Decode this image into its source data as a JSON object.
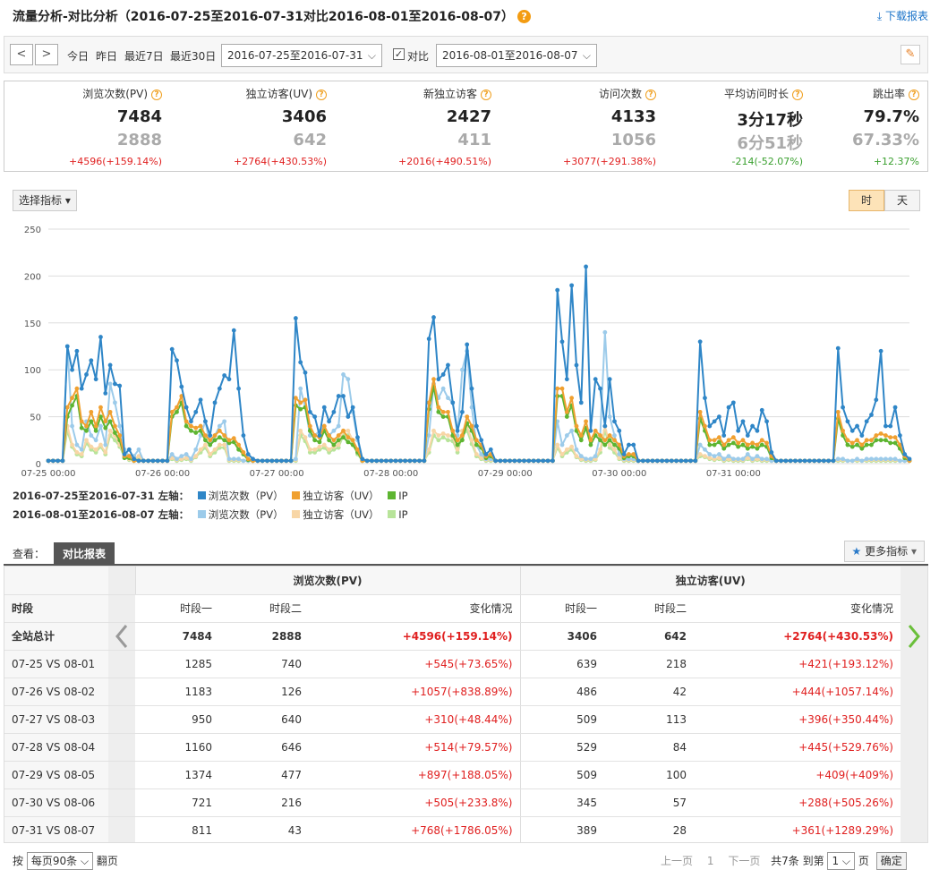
{
  "header": {
    "title": "流量分析-对比分析（2016-07-25至2016-07-31对比2016-08-01至2016-08-07）",
    "help_icon": "?",
    "download_label": "下载报表"
  },
  "toolbar": {
    "prev": "<",
    "next": ">",
    "quick": [
      "今日",
      "昨日",
      "最近7日",
      "最近30日"
    ],
    "range1": "2016-07-25至2016-07-31",
    "compare_checked": "✓",
    "compare_label": "对比",
    "range2": "2016-08-01至2016-08-07"
  },
  "metrics": [
    {
      "label": "浏览次数(PV)",
      "v1": "7484",
      "v2": "2888",
      "change": "+4596(+159.14%)",
      "dir": "up"
    },
    {
      "label": "独立访客(UV)",
      "v1": "3406",
      "v2": "642",
      "change": "+2764(+430.53%)",
      "dir": "up"
    },
    {
      "label": "新独立访客",
      "v1": "2427",
      "v2": "411",
      "change": "+2016(+490.51%)",
      "dir": "up"
    },
    {
      "label": "访问次数",
      "v1": "4133",
      "v2": "1056",
      "change": "+3077(+291.38%)",
      "dir": "up"
    },
    {
      "label": "平均访问时长",
      "v1": "3分17秒",
      "v2": "6分51秒",
      "change": "-214(-52.07%)",
      "dir": "dn"
    },
    {
      "label": "跳出率",
      "v1": "79.7%",
      "v2": "67.33%",
      "change": "+12.37%",
      "dir": "dn"
    }
  ],
  "chart_controls": {
    "select_metric": "选择指标 ▾",
    "hour": "时",
    "day": "天"
  },
  "chart_data": {
    "type": "line",
    "y_ticks": [
      "250",
      "200",
      "150",
      "100",
      "50",
      "0"
    ],
    "ylim": [
      0,
      250
    ],
    "x_ticks": [
      "07-25 00:00",
      "07-26 00:00",
      "07-27 00:00",
      "07-28 00:00",
      "07-29 00:00",
      "07-30 00:00",
      "07-31 00:00"
    ],
    "colors": {
      "pv1": "#2f86c7",
      "uv1": "#f0a030",
      "ip1": "#5db531",
      "pv2": "#9ccbea",
      "uv2": "#f8d6a6",
      "ip2": "#b8e49a"
    },
    "series": [
      {
        "key": "pv1",
        "values": [
          3,
          3,
          3,
          3,
          125,
          100,
          120,
          80,
          95,
          110,
          90,
          135,
          75,
          105,
          85,
          83,
          10,
          15,
          5,
          3,
          3,
          3,
          3,
          3,
          3,
          3,
          122,
          110,
          82,
          60,
          45,
          55,
          68,
          45,
          30,
          65,
          80,
          94,
          90,
          142,
          80,
          30,
          10,
          5,
          3,
          3,
          3,
          3,
          3,
          3,
          3,
          3,
          155,
          108,
          97,
          55,
          50,
          30,
          60,
          45,
          55,
          72,
          72,
          50,
          60,
          28,
          5,
          3,
          3,
          3,
          3,
          3,
          3,
          3,
          3,
          3,
          3,
          3,
          3,
          3,
          133,
          156,
          90,
          95,
          105,
          65,
          35,
          55,
          127,
          80,
          40,
          25,
          10,
          15,
          3,
          3,
          3,
          3,
          3,
          3,
          3,
          3,
          3,
          3,
          3,
          3,
          3,
          185,
          130,
          90,
          190,
          105,
          65,
          210,
          35,
          90,
          80,
          40,
          90,
          45,
          35,
          10,
          20,
          20,
          3,
          3,
          3,
          3,
          3,
          3,
          3,
          3,
          3,
          3,
          3,
          3,
          3,
          130,
          70,
          40,
          45,
          50,
          30,
          60,
          65,
          35,
          45,
          30,
          40,
          35,
          57,
          45,
          12,
          3,
          3,
          3,
          3,
          3,
          3,
          3,
          3,
          3,
          3,
          3,
          3,
          3,
          123,
          60,
          45,
          35,
          40,
          30,
          45,
          52,
          68,
          120,
          40,
          40,
          60,
          30,
          10,
          5
        ]
      },
      {
        "key": "uv1",
        "values": [
          3,
          3,
          3,
          3,
          60,
          70,
          80,
          45,
          40,
          55,
          40,
          60,
          45,
          55,
          40,
          30,
          8,
          8,
          3,
          3,
          3,
          3,
          3,
          3,
          3,
          3,
          55,
          60,
          72,
          45,
          40,
          38,
          40,
          30,
          25,
          30,
          35,
          30,
          25,
          27,
          20,
          12,
          5,
          3,
          3,
          3,
          3,
          3,
          3,
          3,
          3,
          3,
          70,
          65,
          68,
          40,
          30,
          28,
          40,
          30,
          25,
          30,
          35,
          28,
          25,
          15,
          3,
          3,
          3,
          3,
          3,
          3,
          3,
          3,
          3,
          3,
          3,
          3,
          3,
          3,
          65,
          90,
          60,
          55,
          55,
          35,
          25,
          30,
          50,
          40,
          25,
          20,
          8,
          10,
          3,
          3,
          3,
          3,
          3,
          3,
          3,
          3,
          3,
          3,
          3,
          3,
          3,
          80,
          80,
          55,
          70,
          40,
          30,
          45,
          25,
          35,
          30,
          25,
          30,
          25,
          20,
          8,
          10,
          10,
          3,
          3,
          3,
          3,
          3,
          3,
          3,
          3,
          3,
          3,
          3,
          3,
          3,
          55,
          40,
          25,
          25,
          28,
          20,
          25,
          28,
          22,
          25,
          20,
          22,
          20,
          25,
          22,
          8,
          3,
          3,
          3,
          3,
          3,
          3,
          3,
          3,
          3,
          3,
          3,
          3,
          3,
          55,
          35,
          25,
          22,
          25,
          20,
          25,
          25,
          30,
          32,
          30,
          28,
          28,
          20,
          8,
          3
        ]
      },
      {
        "key": "ip1",
        "values": [
          3,
          3,
          3,
          3,
          50,
          62,
          72,
          38,
          35,
          45,
          35,
          50,
          38,
          45,
          33,
          25,
          6,
          6,
          3,
          3,
          3,
          3,
          3,
          3,
          3,
          3,
          50,
          55,
          65,
          40,
          35,
          33,
          35,
          25,
          20,
          25,
          28,
          25,
          22,
          23,
          15,
          10,
          4,
          3,
          3,
          3,
          3,
          3,
          3,
          3,
          3,
          3,
          62,
          58,
          60,
          35,
          25,
          23,
          35,
          25,
          20,
          25,
          28,
          23,
          20,
          12,
          3,
          3,
          3,
          3,
          3,
          3,
          3,
          3,
          3,
          3,
          3,
          3,
          3,
          3,
          58,
          82,
          55,
          50,
          50,
          30,
          20,
          25,
          43,
          35,
          20,
          17,
          6,
          8,
          3,
          3,
          3,
          3,
          3,
          3,
          3,
          3,
          3,
          3,
          3,
          3,
          3,
          72,
          72,
          50,
          62,
          35,
          25,
          38,
          20,
          30,
          25,
          20,
          25,
          20,
          16,
          6,
          8,
          8,
          3,
          3,
          3,
          3,
          3,
          3,
          3,
          3,
          3,
          3,
          3,
          3,
          3,
          48,
          35,
          20,
          20,
          23,
          16,
          20,
          22,
          18,
          20,
          16,
          18,
          16,
          20,
          18,
          6,
          3,
          3,
          3,
          3,
          3,
          3,
          3,
          3,
          3,
          3,
          3,
          3,
          3,
          48,
          30,
          20,
          18,
          20,
          16,
          20,
          20,
          25,
          25,
          25,
          22,
          22,
          16,
          6,
          3
        ]
      },
      {
        "key": "pv2",
        "values": [
          3,
          3,
          3,
          3,
          125,
          40,
          20,
          15,
          45,
          30,
          25,
          40,
          20,
          85,
          65,
          40,
          15,
          8,
          8,
          15,
          3,
          3,
          3,
          3,
          3,
          3,
          10,
          5,
          8,
          10,
          5,
          15,
          30,
          45,
          20,
          30,
          40,
          45,
          5,
          5,
          5,
          3,
          3,
          3,
          3,
          3,
          3,
          3,
          3,
          3,
          3,
          3,
          5,
          80,
          60,
          30,
          30,
          35,
          40,
          30,
          35,
          40,
          95,
          90,
          55,
          25,
          5,
          3,
          3,
          3,
          3,
          3,
          3,
          3,
          3,
          3,
          3,
          3,
          3,
          3,
          30,
          85,
          70,
          80,
          70,
          65,
          30,
          100,
          120,
          60,
          20,
          10,
          5,
          5,
          3,
          3,
          3,
          3,
          3,
          3,
          3,
          3,
          3,
          3,
          3,
          3,
          3,
          45,
          20,
          30,
          35,
          15,
          8,
          5,
          5,
          8,
          30,
          140,
          50,
          30,
          10,
          5,
          5,
          5,
          3,
          3,
          3,
          3,
          3,
          3,
          3,
          3,
          3,
          3,
          3,
          3,
          3,
          20,
          15,
          10,
          8,
          10,
          5,
          8,
          5,
          5,
          5,
          10,
          5,
          8,
          5,
          5,
          3,
          3,
          3,
          3,
          3,
          3,
          3,
          3,
          3,
          3,
          3,
          3,
          3,
          3,
          5,
          5,
          3,
          3,
          5,
          3,
          5,
          5,
          5,
          5,
          5,
          5,
          5,
          3,
          3,
          3
        ]
      },
      {
        "key": "uv2",
        "values": [
          3,
          3,
          3,
          3,
          40,
          20,
          12,
          10,
          25,
          18,
          15,
          20,
          12,
          35,
          30,
          20,
          8,
          5,
          5,
          8,
          3,
          3,
          3,
          3,
          3,
          3,
          6,
          4,
          5,
          6,
          4,
          8,
          15,
          20,
          10,
          15,
          20,
          20,
          4,
          4,
          4,
          3,
          3,
          3,
          3,
          3,
          3,
          3,
          3,
          3,
          3,
          3,
          4,
          35,
          28,
          15,
          15,
          18,
          20,
          15,
          18,
          20,
          35,
          35,
          25,
          12,
          4,
          3,
          3,
          3,
          3,
          3,
          3,
          3,
          3,
          3,
          3,
          3,
          3,
          3,
          15,
          35,
          30,
          32,
          30,
          28,
          15,
          35,
          40,
          25,
          10,
          6,
          4,
          4,
          3,
          3,
          3,
          3,
          3,
          3,
          3,
          3,
          3,
          3,
          3,
          3,
          3,
          20,
          10,
          15,
          18,
          8,
          5,
          4,
          4,
          5,
          15,
          40,
          20,
          15,
          6,
          4,
          4,
          4,
          3,
          3,
          3,
          3,
          3,
          3,
          3,
          3,
          3,
          3,
          3,
          3,
          3,
          10,
          8,
          6,
          5,
          6,
          4,
          5,
          4,
          4,
          4,
          6,
          4,
          5,
          4,
          4,
          3,
          3,
          3,
          3,
          3,
          3,
          3,
          3,
          3,
          3,
          3,
          3,
          3,
          3,
          4,
          4,
          3,
          3,
          4,
          3,
          4,
          4,
          4,
          4,
          4,
          4,
          4,
          3,
          3,
          3
        ]
      },
      {
        "key": "ip2",
        "values": [
          3,
          3,
          3,
          3,
          35,
          18,
          10,
          8,
          22,
          15,
          12,
          18,
          10,
          30,
          25,
          18,
          7,
          4,
          4,
          7,
          3,
          3,
          3,
          3,
          3,
          3,
          5,
          3,
          4,
          5,
          3,
          7,
          12,
          17,
          8,
          12,
          17,
          17,
          3,
          3,
          3,
          3,
          3,
          3,
          3,
          3,
          3,
          3,
          3,
          3,
          3,
          3,
          3,
          30,
          24,
          12,
          12,
          15,
          17,
          12,
          15,
          17,
          30,
          30,
          21,
          10,
          3,
          3,
          3,
          3,
          3,
          3,
          3,
          3,
          3,
          3,
          3,
          3,
          3,
          3,
          12,
          30,
          25,
          28,
          25,
          24,
          12,
          30,
          35,
          21,
          8,
          5,
          3,
          3,
          3,
          3,
          3,
          3,
          3,
          3,
          3,
          3,
          3,
          3,
          3,
          3,
          3,
          17,
          8,
          12,
          15,
          7,
          4,
          3,
          3,
          4,
          12,
          35,
          17,
          12,
          5,
          3,
          3,
          3,
          3,
          3,
          3,
          3,
          3,
          3,
          3,
          3,
          3,
          3,
          3,
          3,
          3,
          8,
          7,
          5,
          4,
          5,
          3,
          4,
          3,
          3,
          3,
          5,
          3,
          4,
          3,
          3,
          3,
          3,
          3,
          3,
          3,
          3,
          3,
          3,
          3,
          3,
          3,
          3,
          3,
          3,
          3,
          3,
          3,
          3,
          3,
          3,
          3,
          3,
          3,
          3,
          3,
          3,
          3,
          3,
          3,
          3
        ]
      }
    ]
  },
  "legend": [
    {
      "range": "2016-07-25至2016-07-31 左轴：",
      "items": [
        {
          "label": "浏览次数（PV）",
          "color": "#2f86c7"
        },
        {
          "label": "独立访客（UV）",
          "color": "#f0a030"
        },
        {
          "label": "IP",
          "color": "#5db531"
        }
      ]
    },
    {
      "range": "2016-08-01至2016-08-07 左轴：",
      "items": [
        {
          "label": "浏览次数（PV）",
          "color": "#9ccbea"
        },
        {
          "label": "独立访客（UV）",
          "color": "#f8d6a6"
        },
        {
          "label": "IP",
          "color": "#b8e49a"
        }
      ]
    }
  ],
  "table_tabs": {
    "view_label": "查看：",
    "active_tab": "对比报表",
    "more_label": "更多指标"
  },
  "table": {
    "group_pv": "浏览次数(PV)",
    "group_uv": "独立访客(UV)",
    "col_period": "时段",
    "col_p1": "时段一",
    "col_p2": "时段二",
    "col_change": "变化情况",
    "rows": [
      {
        "name": "全站总计",
        "pv1": "7484",
        "pv2": "2888",
        "pvc": "+4596(+159.14%)",
        "uv1": "3406",
        "uv2": "642",
        "uvc": "+2764(+430.53%)"
      },
      {
        "name": "07-25 VS 08-01",
        "pv1": "1285",
        "pv2": "740",
        "pvc": "+545(+73.65%)",
        "uv1": "639",
        "uv2": "218",
        "uvc": "+421(+193.12%)"
      },
      {
        "name": "07-26 VS 08-02",
        "pv1": "1183",
        "pv2": "126",
        "pvc": "+1057(+838.89%)",
        "uv1": "486",
        "uv2": "42",
        "uvc": "+444(+1057.14%)"
      },
      {
        "name": "07-27 VS 08-03",
        "pv1": "950",
        "pv2": "640",
        "pvc": "+310(+48.44%)",
        "uv1": "509",
        "uv2": "113",
        "uvc": "+396(+350.44%)"
      },
      {
        "name": "07-28 VS 08-04",
        "pv1": "1160",
        "pv2": "646",
        "pvc": "+514(+79.57%)",
        "uv1": "529",
        "uv2": "84",
        "uvc": "+445(+529.76%)"
      },
      {
        "name": "07-29 VS 08-05",
        "pv1": "1374",
        "pv2": "477",
        "pvc": "+897(+188.05%)",
        "uv1": "509",
        "uv2": "100",
        "uvc": "+409(+409%)"
      },
      {
        "name": "07-30 VS 08-06",
        "pv1": "721",
        "pv2": "216",
        "pvc": "+505(+233.8%)",
        "uv1": "345",
        "uv2": "57",
        "uvc": "+288(+505.26%)"
      },
      {
        "name": "07-31 VS 08-07",
        "pv1": "811",
        "pv2": "43",
        "pvc": "+768(+1786.05%)",
        "uv1": "389",
        "uv2": "28",
        "uvc": "+361(+1289.29%)"
      }
    ]
  },
  "pagination": {
    "by": "按",
    "per_page": "每页90条",
    "flip": "翻页",
    "prev": "上一页",
    "page": "1",
    "next": "下一页",
    "total": "共7条",
    "goto": "到第",
    "goto_val": "1",
    "unit": "页",
    "confirm": "确定"
  }
}
